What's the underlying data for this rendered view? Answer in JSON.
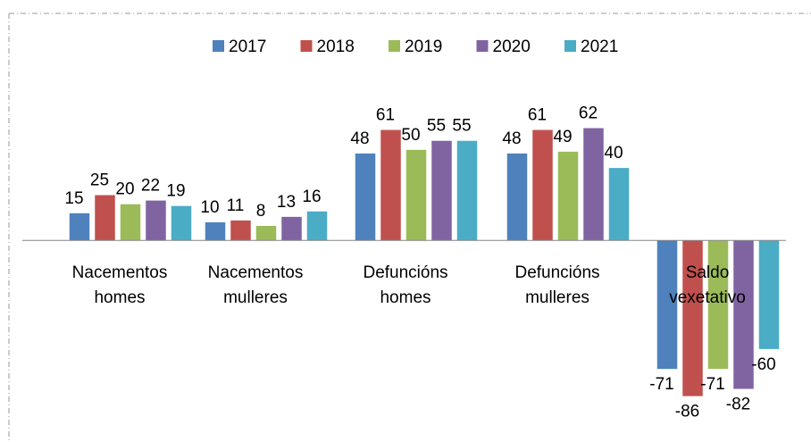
{
  "chart_data": {
    "type": "bar",
    "categories": [
      "Nacementos homes",
      "Nacementos mulleres",
      "Defuncións homes",
      "Defuncións mulleres",
      "Saldo vexetativo"
    ],
    "series": [
      {
        "name": "2017",
        "color": "#4f81bd",
        "values": [
          15,
          10,
          48,
          48,
          -71
        ]
      },
      {
        "name": "2018",
        "color": "#c0504d",
        "values": [
          25,
          11,
          61,
          61,
          -86
        ]
      },
      {
        "name": "2019",
        "color": "#9bbb59",
        "values": [
          20,
          8,
          50,
          49,
          -71
        ]
      },
      {
        "name": "2020",
        "color": "#8064a2",
        "values": [
          22,
          13,
          55,
          62,
          -82
        ]
      },
      {
        "name": "2021",
        "color": "#4bacc6",
        "values": [
          19,
          16,
          55,
          40,
          -60
        ]
      }
    ],
    "ylim": [
      -100,
      80
    ],
    "legend": "top"
  }
}
